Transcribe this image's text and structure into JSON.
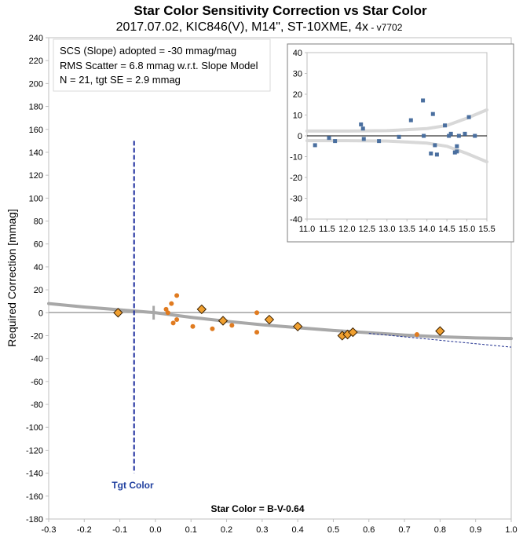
{
  "title": {
    "main": "Star Color Sensitivity Correction vs Star Color",
    "sub": "2017.07.02, KIC846(V), M14\", ST-10XME, 4x",
    "version": " - v7702"
  },
  "annotations": [
    "SCS (Slope) adopted  =  -30 mmag/mag",
    "RMS Scatter = 6.8 mmag w.r.t. Slope Model",
    "N = 21,  tgt SE = 2.9 mmag"
  ],
  "tgt_color_label": "Tgt Color",
  "colors": {
    "dot": "#e07b20",
    "diamond": "#f0a030",
    "diamond_edge": "#3a2000",
    "fit_curve": "#a8a8a8",
    "slope_line": "#1f2f8f",
    "tgt_line": "#1f2f9f",
    "inset_point": "#4a6f9f",
    "inset_band": "#d8d8d8"
  },
  "chart_data": [
    {
      "type": "scatter",
      "xlabel": "Star Color = B-V-0.64",
      "ylabel": "Required Correction [mmag]",
      "xlim": [
        -0.3,
        1.0
      ],
      "ylim": [
        -180,
        240
      ],
      "xticks": [
        "-0.3",
        "-0.2",
        "-0.1",
        "0.0",
        "0.1",
        "0.2",
        "0.3",
        "0.4",
        "0.5",
        "0.6",
        "0.7",
        "0.8",
        "0.9",
        "1.0"
      ],
      "yticks": [
        "240",
        "220",
        "200",
        "180",
        "160",
        "140",
        "120",
        "100",
        "80",
        "60",
        "40",
        "20",
        "0",
        "-20",
        "-40",
        "-60",
        "-80",
        "-100",
        "-120",
        "-140",
        "-160",
        "-180"
      ],
      "tgt_color_x": -0.06,
      "tgt_line_range": [
        -140,
        150
      ],
      "series": [
        {
          "marker": "dot",
          "points": [
            [
              0.03,
              3
            ],
            [
              0.035,
              0
            ],
            [
              0.045,
              8
            ],
            [
              0.05,
              -9
            ],
            [
              0.06,
              15
            ],
            [
              0.06,
              -6
            ],
            [
              0.105,
              -12
            ],
            [
              0.16,
              -14
            ],
            [
              0.215,
              -11
            ],
            [
              0.285,
              0
            ],
            [
              0.285,
              -17
            ],
            [
              0.735,
              -19
            ]
          ]
        },
        {
          "marker": "diamond",
          "points": [
            [
              -0.105,
              0
            ],
            [
              0.13,
              3
            ],
            [
              0.19,
              -7
            ],
            [
              0.32,
              -6
            ],
            [
              0.4,
              -12
            ],
            [
              0.525,
              -20
            ],
            [
              0.54,
              -19
            ],
            [
              0.555,
              -17
            ],
            [
              0.8,
              -16
            ]
          ]
        }
      ],
      "fit_curve": [
        [
          -0.3,
          8
        ],
        [
          -0.2,
          5
        ],
        [
          -0.1,
          2.5
        ],
        [
          0,
          0
        ],
        [
          0.1,
          -4
        ],
        [
          0.2,
          -7.5
        ],
        [
          0.3,
          -10.5
        ],
        [
          0.4,
          -13
        ],
        [
          0.5,
          -15.5
        ],
        [
          0.6,
          -17.5
        ],
        [
          0.7,
          -19.5
        ],
        [
          0.8,
          -21
        ],
        [
          0.9,
          -22
        ],
        [
          1.0,
          -22.5
        ]
      ],
      "slope_line": [
        [
          0.6,
          -18
        ],
        [
          1.0,
          -30
        ]
      ],
      "gap_marker_x": -0.005
    },
    {
      "type": "scatter",
      "xlim": [
        11.0,
        15.5
      ],
      "ylim": [
        -40,
        40
      ],
      "xticks": [
        "11.0",
        "11.5",
        "12.0",
        "12.5",
        "13.0",
        "13.5",
        "14.0",
        "14.5",
        "15.0",
        "15.5"
      ],
      "yticks": [
        "40",
        "30",
        "20",
        "10",
        "0",
        "-10",
        "-20",
        "-30",
        "-40"
      ],
      "points": [
        [
          11.2,
          -4.5
        ],
        [
          11.55,
          -1
        ],
        [
          11.7,
          -2.5
        ],
        [
          12.35,
          5.5
        ],
        [
          12.4,
          3.5
        ],
        [
          12.42,
          -1.5
        ],
        [
          12.8,
          -2.5
        ],
        [
          13.3,
          -0.5
        ],
        [
          13.6,
          7.5
        ],
        [
          13.9,
          17
        ],
        [
          13.92,
          0
        ],
        [
          14.1,
          -8.5
        ],
        [
          14.15,
          10.5
        ],
        [
          14.2,
          -4.5
        ],
        [
          14.25,
          -9
        ],
        [
          14.45,
          5
        ],
        [
          14.55,
          0
        ],
        [
          14.6,
          1
        ],
        [
          14.7,
          -8
        ],
        [
          14.75,
          -5
        ],
        [
          14.75,
          -7.5
        ],
        [
          14.8,
          0
        ],
        [
          14.95,
          1
        ],
        [
          15.05,
          9
        ],
        [
          15.2,
          0
        ]
      ],
      "band_upper": [
        [
          11.0,
          2.3
        ],
        [
          11.5,
          2.3
        ],
        [
          12.0,
          2.3
        ],
        [
          12.5,
          2.4
        ],
        [
          13.0,
          2.5
        ],
        [
          13.5,
          3.0
        ],
        [
          14.0,
          3.5
        ],
        [
          14.5,
          5.0
        ],
        [
          15.0,
          8.5
        ],
        [
          15.5,
          12.5
        ]
      ],
      "band_lower": [
        [
          11.0,
          -2.3
        ],
        [
          11.5,
          -2.3
        ],
        [
          12.0,
          -2.3
        ],
        [
          12.5,
          -2.4
        ],
        [
          13.0,
          -2.5
        ],
        [
          13.5,
          -3.0
        ],
        [
          14.0,
          -3.5
        ],
        [
          14.5,
          -5.0
        ],
        [
          15.0,
          -8.5
        ],
        [
          15.5,
          -12.5
        ]
      ]
    }
  ]
}
